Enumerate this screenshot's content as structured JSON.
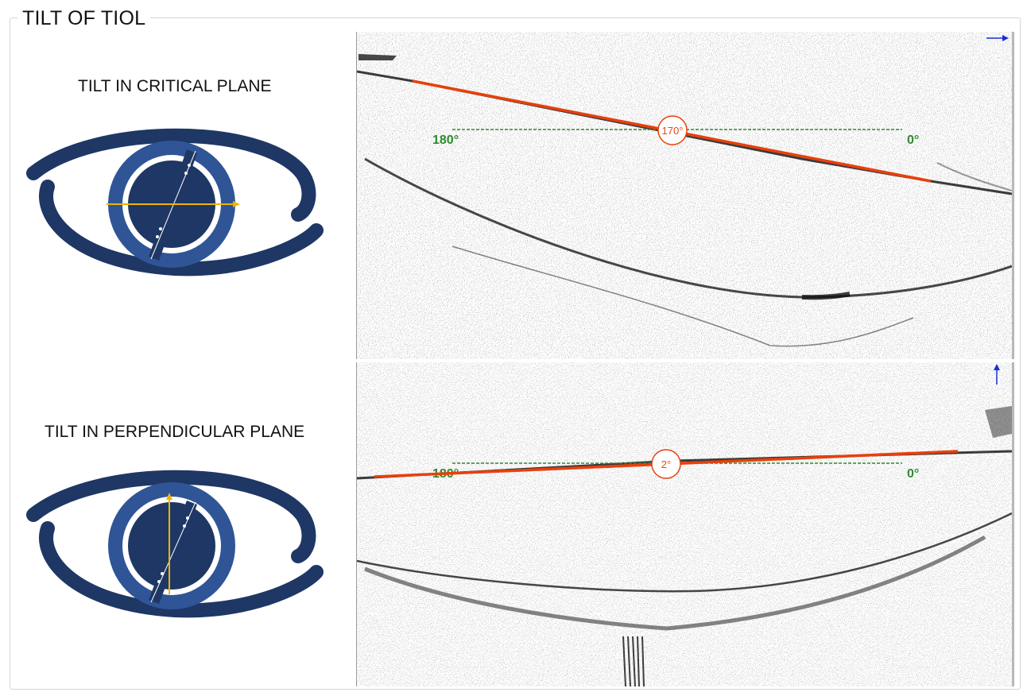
{
  "panel": {
    "title": "TILT OF TIOL"
  },
  "critical": {
    "label": "TILT IN CRITICAL PLANE",
    "measured_angle": "170°",
    "left_ref": "180°",
    "right_ref": "0°",
    "direction_arrow": "arrow-right-icon"
  },
  "perpendicular": {
    "label": "TILT IN PERPENDICULAR PLANE",
    "measured_angle": "2°",
    "left_ref": "180°",
    "right_ref": "0°",
    "direction_arrow": "arrow-up-icon"
  },
  "colors": {
    "eye_outline": "#1f3764",
    "iris_ring": "#2f5597",
    "pupil": "#1f3764",
    "guide_line": "#f0b400",
    "tilt_line": "#e8400c",
    "reference_line": "#2f8a2f",
    "direction_arrow": "#1a2fd6"
  }
}
